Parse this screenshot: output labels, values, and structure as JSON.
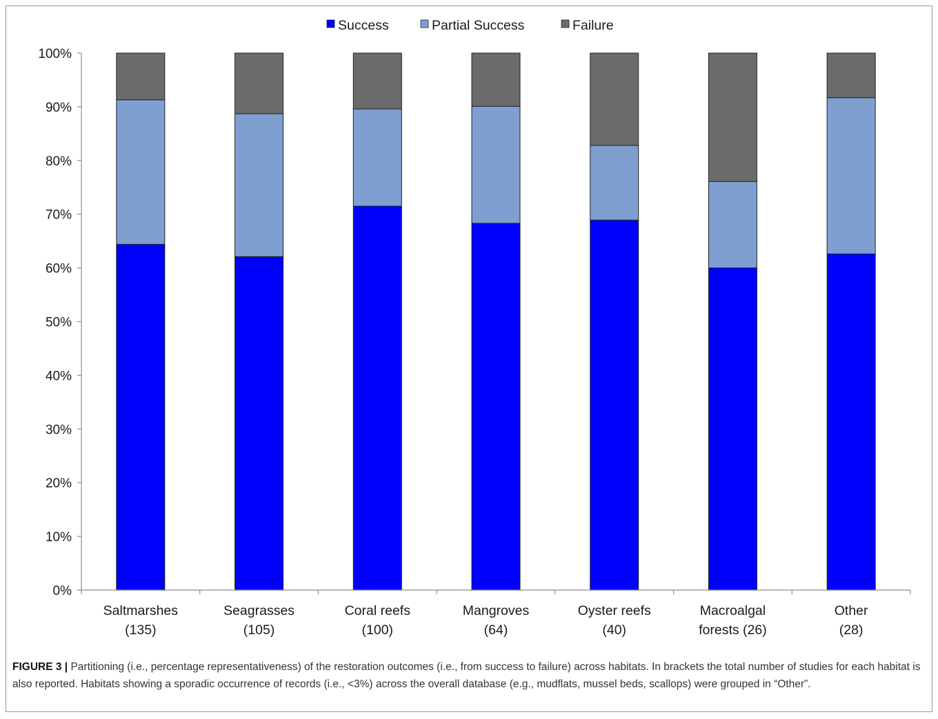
{
  "chart_data": {
    "type": "bar",
    "stacked": true,
    "categories": [
      [
        "Saltmarshes",
        "(135)"
      ],
      [
        "Seagrasses",
        "(105)"
      ],
      [
        "Coral reefs",
        "(100)"
      ],
      [
        "Mangroves",
        "(64)"
      ],
      [
        "Oyster reefs",
        "(40)"
      ],
      [
        "Macroalgal",
        "forests (26)"
      ],
      [
        "Other",
        "(28)"
      ]
    ],
    "series": [
      {
        "name": "Success",
        "color": "#0000ff",
        "values": [
          64.4,
          62.1,
          71.5,
          68.3,
          68.9,
          60.0,
          62.6
        ]
      },
      {
        "name": "Partial Success",
        "color": "#7f9fd1",
        "values": [
          26.9,
          26.6,
          18.1,
          21.8,
          13.9,
          16.1,
          29.1
        ]
      },
      {
        "name": "Failure",
        "color": "#6b6b6b",
        "values": [
          8.7,
          11.3,
          10.4,
          9.9,
          17.2,
          23.9,
          8.3
        ]
      }
    ],
    "yticks": [
      "0%",
      "10%",
      "20%",
      "30%",
      "40%",
      "50%",
      "60%",
      "70%",
      "80%",
      "90%",
      "100%"
    ],
    "ylim": [
      0,
      100
    ],
    "legend_position": "top-center",
    "grid": false
  },
  "caption": {
    "label": "FIGURE 3 |",
    "text": "Partitioning (i.e., percentage representativeness) of the restoration outcomes (i.e., from success to failure) across habitats. In brackets the total number of studies for each habitat is also reported. Habitats showing a sporadic occurrence of records (i.e., <3%) across the overall database (e.g., mudflats, mussel beds, scallops) were grouped in “Other”."
  }
}
